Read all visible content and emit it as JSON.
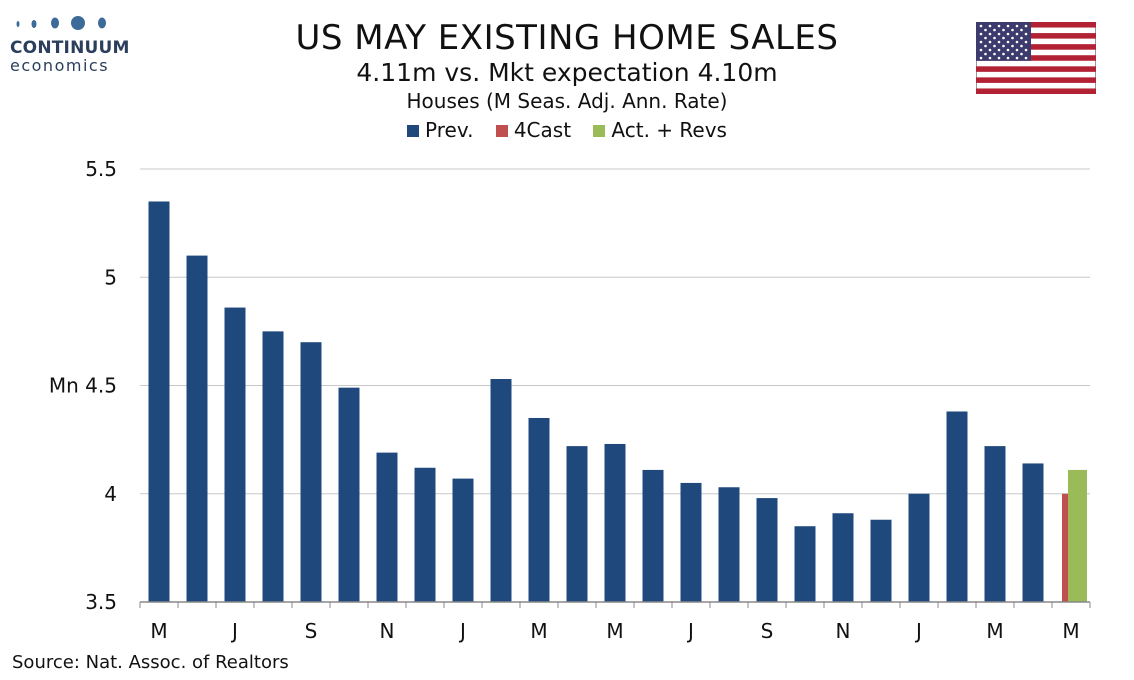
{
  "brand": {
    "name": "CONTINUUM",
    "sub": "economics"
  },
  "header": {
    "title": "US MAY EXISTING HOME SALES",
    "subtitle": "4.11m vs. Mkt expectation 4.10m",
    "subtitle2": "Houses (M Seas. Adj. Ann. Rate)"
  },
  "legend": [
    {
      "label": "Prev.",
      "color": "#1f497d"
    },
    {
      "label": "4Cast",
      "color": "#c0504d"
    },
    {
      "label": "Act. + Revs",
      "color": "#9bbb59"
    }
  ],
  "footer": {
    "source": "Source: Nat. Assoc. of Realtors"
  },
  "chart_data": {
    "type": "bar",
    "ylabel": "Mn",
    "ylim": [
      3.5,
      5.5
    ],
    "yticks": [
      3.5,
      4,
      4.5,
      5,
      5.5
    ],
    "grid": true,
    "legend_position": "top-center",
    "x_tick_labels": [
      "M",
      "J",
      "S",
      "N",
      "J",
      "M",
      "M",
      "J",
      "S",
      "N",
      "J",
      "M",
      "M"
    ],
    "series": [
      {
        "name": "Prev.",
        "color": "#1f497d",
        "values": [
          5.35,
          5.1,
          4.86,
          4.75,
          4.7,
          4.49,
          4.19,
          4.12,
          4.07,
          4.53,
          4.35,
          4.22,
          4.23,
          4.11,
          4.05,
          4.03,
          3.98,
          3.85,
          3.91,
          3.88,
          4.0,
          4.38,
          4.22,
          4.14,
          null
        ]
      },
      {
        "name": "4Cast",
        "color": "#c0504d",
        "values": [
          null,
          null,
          null,
          null,
          null,
          null,
          null,
          null,
          null,
          null,
          null,
          null,
          null,
          null,
          null,
          null,
          null,
          null,
          null,
          null,
          null,
          null,
          null,
          null,
          4.0
        ]
      },
      {
        "name": "Act. + Revs",
        "color": "#9bbb59",
        "values": [
          null,
          null,
          null,
          null,
          null,
          null,
          null,
          null,
          null,
          null,
          null,
          null,
          null,
          null,
          null,
          null,
          null,
          null,
          null,
          null,
          null,
          null,
          null,
          null,
          4.11
        ]
      }
    ]
  }
}
